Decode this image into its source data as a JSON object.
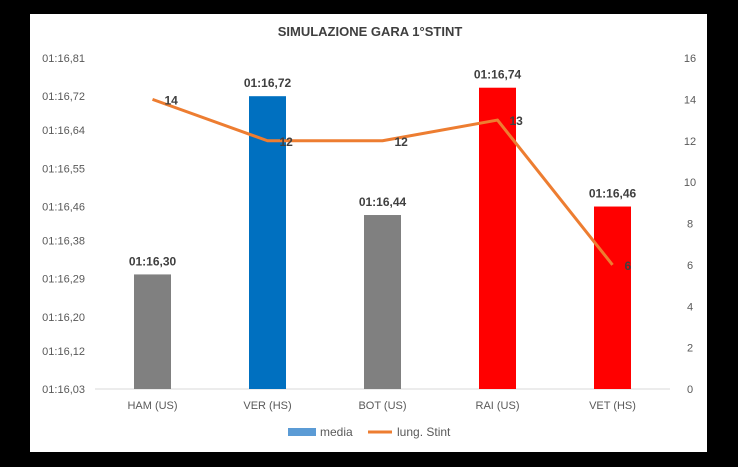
{
  "chart_data": {
    "type": "bar+line",
    "title": "SIMULAZIONE GARA 1°STINT",
    "categories": [
      "HAM (US)",
      "VER (HS)",
      "BOT (US)",
      "RAI (US)",
      "VET (HS)"
    ],
    "series": [
      {
        "name": "media",
        "type": "bar",
        "axis": "left",
        "values": [
          76.3,
          76.72,
          76.44,
          76.74,
          76.46
        ],
        "data_labels": [
          "01:16,30",
          "01:16,72",
          "01:16,44",
          "01:16,74",
          "01:16,46"
        ],
        "bar_colors": [
          "#808080",
          "#0070C0",
          "#808080",
          "#FF0000",
          "#FF0000"
        ]
      },
      {
        "name": "lung. Stint",
        "type": "line",
        "axis": "right",
        "values": [
          14,
          12,
          12,
          13,
          6
        ],
        "data_labels": [
          "14",
          "12",
          "12",
          "13",
          "6"
        ],
        "color": "#ED7D31"
      }
    ],
    "y_left": {
      "ylim": [
        76.03,
        76.81
      ],
      "ticks": [
        76.03,
        76.12,
        76.2,
        76.29,
        76.38,
        76.46,
        76.55,
        76.64,
        76.72,
        76.81
      ],
      "tick_labels": [
        "01:16,03",
        "01:16,12",
        "01:16,20",
        "01:16,29",
        "01:16,38",
        "01:16,46",
        "01:16,55",
        "01:16,64",
        "01:16,72",
        "01:16,81"
      ]
    },
    "y_right": {
      "ylim": [
        0,
        16
      ],
      "ticks": [
        0,
        2,
        4,
        6,
        8,
        10,
        12,
        14,
        16
      ],
      "tick_labels": [
        "0",
        "2",
        "4",
        "6",
        "8",
        "10",
        "12",
        "14",
        "16"
      ]
    },
    "legend": {
      "position": "bottom",
      "items": [
        {
          "label": "media",
          "color": "#5B9BD5",
          "kind": "bar"
        },
        {
          "label": "lung. Stint",
          "color": "#ED7D31",
          "kind": "line"
        }
      ]
    },
    "grid": false
  }
}
